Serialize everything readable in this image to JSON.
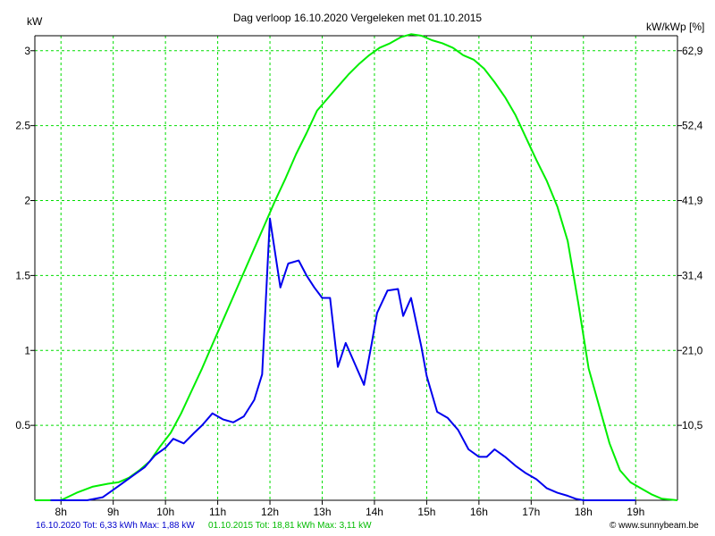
{
  "chart_data": {
    "type": "line",
    "title": "Dag  verloop 16.10.2020   Vergeleken met 01.10.2015",
    "left_unit": "kW",
    "right_unit": "kW/kWp [%]",
    "ylim": [
      0,
      3.1
    ],
    "y_ticks": [
      0.5,
      1,
      1.5,
      2,
      2.5,
      3
    ],
    "y_tick_labels": [
      "0.5",
      "1",
      "1.5",
      "2",
      "2.5",
      "3"
    ],
    "right_ticks": [
      0.5,
      1,
      1.5,
      2,
      2.5,
      3
    ],
    "right_tick_labels": [
      "10,5",
      "21,0",
      "31,4",
      "41,9",
      "52,4",
      "62,9"
    ],
    "xlim": [
      7.5,
      19.8
    ],
    "x_ticks": [
      8,
      9,
      10,
      11,
      12,
      13,
      14,
      15,
      16,
      17,
      18,
      19
    ],
    "x_tick_labels": [
      "8h",
      "9h",
      "10h",
      "11h",
      "12h",
      "13h",
      "14h",
      "15h",
      "16h",
      "17h",
      "18h",
      "19h"
    ],
    "grid": true,
    "colors": {
      "series_1": "#0000ee",
      "series_2": "#00ee00",
      "grid": "#00dd00",
      "axis": "#000000"
    },
    "series": [
      {
        "x": [
          7.8,
          8.2,
          8.5,
          8.8,
          9.0,
          9.2,
          9.4,
          9.6,
          9.8,
          10.0,
          10.15,
          10.35,
          10.55,
          10.7,
          10.9,
          11.1,
          11.3,
          11.5,
          11.7,
          11.85,
          12.0,
          12.2,
          12.35,
          12.55,
          12.7,
          12.85,
          13.0,
          13.15,
          13.3,
          13.45,
          13.6,
          13.8,
          13.95,
          14.05,
          14.25,
          14.45,
          14.55,
          14.7,
          14.9,
          15.0,
          15.2,
          15.4,
          15.6,
          15.8,
          16.0,
          16.15,
          16.3,
          16.5,
          16.7,
          16.9,
          17.1,
          17.3,
          17.5,
          17.7,
          17.85,
          18.0,
          18.3,
          18.6,
          19.0
        ],
        "y": [
          0,
          0,
          0,
          0.02,
          0.07,
          0.12,
          0.17,
          0.22,
          0.3,
          0.35,
          0.41,
          0.38,
          0.45,
          0.5,
          0.58,
          0.54,
          0.52,
          0.56,
          0.67,
          0.84,
          1.88,
          1.42,
          1.58,
          1.6,
          1.5,
          1.42,
          1.35,
          1.35,
          0.89,
          1.05,
          0.93,
          0.77,
          1.05,
          1.25,
          1.4,
          1.41,
          1.23,
          1.35,
          1.02,
          0.83,
          0.59,
          0.55,
          0.47,
          0.34,
          0.29,
          0.29,
          0.34,
          0.29,
          0.23,
          0.18,
          0.14,
          0.08,
          0.05,
          0.03,
          0.01,
          0,
          0,
          0,
          0
        ]
      },
      {
        "x": [
          7.5,
          7.8,
          8.0,
          8.3,
          8.6,
          8.9,
          9.1,
          9.3,
          9.5,
          9.7,
          9.9,
          10.1,
          10.3,
          10.5,
          10.7,
          10.9,
          11.1,
          11.3,
          11.5,
          11.7,
          11.9,
          12.1,
          12.3,
          12.5,
          12.7,
          12.9,
          13.1,
          13.3,
          13.5,
          13.7,
          13.9,
          14.1,
          14.3,
          14.5,
          14.7,
          14.9,
          15.1,
          15.3,
          15.5,
          15.7,
          15.9,
          16.1,
          16.3,
          16.5,
          16.7,
          16.9,
          17.1,
          17.3,
          17.5,
          17.7,
          17.9,
          18.1,
          18.3,
          18.5,
          18.7,
          18.9,
          19.1,
          19.3,
          19.5,
          19.8
        ],
        "y": [
          0,
          0,
          0,
          0.05,
          0.09,
          0.11,
          0.12,
          0.15,
          0.2,
          0.26,
          0.36,
          0.45,
          0.58,
          0.73,
          0.88,
          1.04,
          1.2,
          1.36,
          1.52,
          1.68,
          1.84,
          2.0,
          2.15,
          2.31,
          2.45,
          2.6,
          2.68,
          2.76,
          2.84,
          2.91,
          2.97,
          3.02,
          3.05,
          3.09,
          3.11,
          3.1,
          3.07,
          3.05,
          3.02,
          2.97,
          2.94,
          2.88,
          2.79,
          2.69,
          2.57,
          2.42,
          2.27,
          2.13,
          1.96,
          1.73,
          1.32,
          0.88,
          0.63,
          0.38,
          0.2,
          0.12,
          0.08,
          0.04,
          0.01,
          0
        ]
      }
    ],
    "footer": {
      "series_1_summary": "16.10.2020 Tot: 6,33 kWh Max: 1,88 kW",
      "series_2_summary": "01.10.2015 Tot: 18,81 kWh Max: 3,11 kW",
      "credit": "© www.sunnybeam.be"
    }
  }
}
